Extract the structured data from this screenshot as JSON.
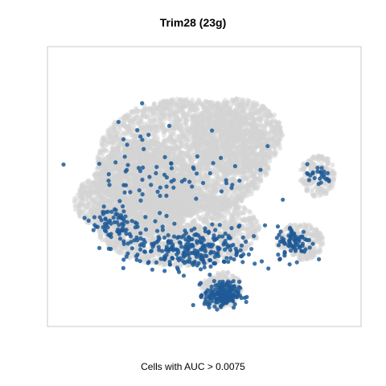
{
  "chart_data": {
    "type": "scatter",
    "title": "Trim28 (23g)",
    "xlabel": "",
    "ylabel": "",
    "caption": "Cells with AUC > 0.0075",
    "axes_visible": false,
    "grid": false,
    "colors": {
      "background_cells": "#d3d3d3",
      "positive_cells": "#1f5a97",
      "frame": "#c8c8c8"
    },
    "background_regions": [
      {
        "cx": 0.42,
        "cy": 0.62,
        "rx": 0.3,
        "ry": 0.22
      },
      {
        "cx": 0.28,
        "cy": 0.5,
        "rx": 0.18,
        "ry": 0.18
      },
      {
        "cx": 0.6,
        "cy": 0.7,
        "rx": 0.16,
        "ry": 0.14
      },
      {
        "cx": 0.4,
        "cy": 0.35,
        "rx": 0.28,
        "ry": 0.14
      },
      {
        "cx": 0.88,
        "cy": 0.55,
        "rx": 0.06,
        "ry": 0.08
      },
      {
        "cx": 0.82,
        "cy": 0.3,
        "rx": 0.08,
        "ry": 0.07
      },
      {
        "cx": 0.55,
        "cy": 0.12,
        "rx": 0.07,
        "ry": 0.07
      },
      {
        "cx": 0.12,
        "cy": 0.45,
        "rx": 0.08,
        "ry": 0.09
      }
    ],
    "positive_regions": [
      {
        "cx": 0.45,
        "cy": 0.27,
        "rx": 0.22,
        "ry": 0.08,
        "n": 260
      },
      {
        "cx": 0.55,
        "cy": 0.1,
        "rx": 0.06,
        "ry": 0.05,
        "n": 180
      },
      {
        "cx": 0.18,
        "cy": 0.37,
        "rx": 0.08,
        "ry": 0.08,
        "n": 70
      },
      {
        "cx": 0.8,
        "cy": 0.3,
        "rx": 0.06,
        "ry": 0.06,
        "n": 80
      },
      {
        "cx": 0.35,
        "cy": 0.55,
        "rx": 0.3,
        "ry": 0.22,
        "n": 90
      },
      {
        "cx": 0.88,
        "cy": 0.55,
        "rx": 0.05,
        "ry": 0.04,
        "n": 25
      }
    ]
  }
}
